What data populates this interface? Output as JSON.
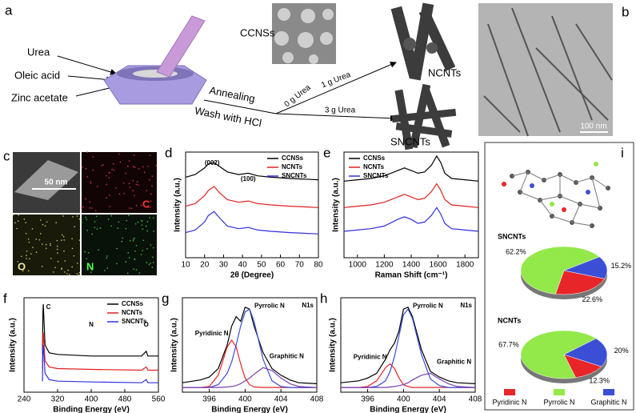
{
  "panel_a": {
    "label": "a",
    "inputs": [
      "Urea",
      "Oleic acid",
      "Zinc acetate"
    ],
    "process": [
      "Annealing",
      "Wash with HCl"
    ],
    "conditions": [
      "0 g Urea",
      "1 g Urea",
      "3 g Urea"
    ],
    "products": [
      "CCNSs",
      "NCNTs",
      "SNCNTs"
    ]
  },
  "panel_b": {
    "label": "b",
    "scale_bar": "100 nm"
  },
  "panel_c": {
    "label": "c",
    "scale_bar": "50 nm",
    "maps": [
      "C",
      "O",
      "N"
    ]
  },
  "chart_data": [
    {
      "type": "line",
      "panel_label": "d",
      "x_label": "2θ (Degree)",
      "y_label": "Intensity (a.u.)",
      "annotations": [
        "(002)",
        "(100)"
      ],
      "legend": "upper right",
      "x": [
        10,
        15,
        20,
        22,
        25,
        28,
        32,
        38,
        43,
        48,
        55,
        65,
        80
      ],
      "series": [
        {
          "name": "CCNSs",
          "color": "#000000",
          "values": [
            3.05,
            3.15,
            3.4,
            3.55,
            3.6,
            3.45,
            3.25,
            3.15,
            3.2,
            3.1,
            3.05,
            3.0,
            2.95
          ]
        },
        {
          "name": "NCNTs",
          "color": "#e02020",
          "values": [
            1.95,
            2.05,
            2.35,
            2.55,
            2.7,
            2.45,
            2.2,
            2.1,
            2.15,
            2.05,
            2.0,
            1.95,
            1.9
          ]
        },
        {
          "name": "SNCNTs",
          "color": "#3030e0",
          "values": [
            0.95,
            1.05,
            1.35,
            1.6,
            1.75,
            1.5,
            1.2,
            1.1,
            1.15,
            1.05,
            1.0,
            0.95,
            0.9
          ]
        }
      ],
      "xlim": [
        10,
        80
      ],
      "xticks": [
        10,
        20,
        30,
        40,
        50,
        60,
        70,
        80
      ],
      "ylim": [
        0,
        4
      ]
    },
    {
      "type": "line",
      "panel_label": "e",
      "x_label": "Raman Shift (cm⁻¹)",
      "y_label": "Intensity (a.u.)",
      "annotations": [],
      "legend": "upper left",
      "x": [
        900,
        1000,
        1100,
        1200,
        1300,
        1350,
        1400,
        1450,
        1500,
        1550,
        1590,
        1620,
        1650,
        1700,
        1800,
        1900
      ],
      "series": [
        {
          "name": "CCNSs",
          "color": "#000000",
          "values": [
            2.9,
            2.95,
            3.0,
            3.1,
            3.3,
            3.4,
            3.3,
            3.2,
            3.25,
            3.5,
            3.85,
            3.6,
            3.2,
            3.0,
            2.95,
            2.9
          ]
        },
        {
          "name": "NCNTs",
          "color": "#e02020",
          "values": [
            1.9,
            1.95,
            2.0,
            2.1,
            2.3,
            2.4,
            2.3,
            2.2,
            2.25,
            2.5,
            2.8,
            2.55,
            2.2,
            2.0,
            1.95,
            1.9
          ]
        },
        {
          "name": "SNCNTs",
          "color": "#3030e0",
          "values": [
            1.0,
            1.05,
            1.1,
            1.2,
            1.45,
            1.55,
            1.45,
            1.3,
            1.35,
            1.6,
            1.9,
            1.65,
            1.3,
            1.1,
            1.05,
            1.0
          ]
        }
      ],
      "xlim": [
        900,
        1900
      ],
      "xticks": [
        1000,
        1200,
        1400,
        1600,
        1800
      ],
      "ylim": [
        0,
        4
      ]
    },
    {
      "type": "line",
      "panel_label": "f",
      "x_label": "Binding Energy (eV)",
      "y_label": "Intensity (a.u.)",
      "annotations": [
        "C",
        "N",
        "O"
      ],
      "legend": "upper right",
      "x": [
        284,
        285,
        286,
        290,
        300,
        320,
        400,
        520,
        531,
        535,
        560
      ],
      "series": [
        {
          "name": "CCNSs",
          "color": "#000000",
          "values": [
            2.4,
            5.0,
            5.6,
            3.0,
            2.5,
            2.4,
            2.3,
            2.3,
            2.6,
            2.3,
            2.3
          ]
        },
        {
          "name": "NCNTs",
          "color": "#e02020",
          "values": [
            1.5,
            3.4,
            3.8,
            2.0,
            1.6,
            1.5,
            1.45,
            1.4,
            1.6,
            1.4,
            1.4
          ]
        },
        {
          "name": "SNCNTs",
          "color": "#3030e0",
          "values": [
            0.7,
            2.6,
            3.0,
            1.2,
            0.8,
            0.7,
            0.65,
            0.6,
            0.8,
            0.6,
            0.6
          ]
        }
      ],
      "xlim": [
        240,
        560
      ],
      "xticks": [
        240,
        320,
        400,
        480,
        560
      ],
      "ylim": [
        0,
        6
      ]
    },
    {
      "type": "line",
      "panel_label": "g",
      "x_label": "Binding Energy (eV)",
      "y_label": "Intensity (a.u.)",
      "annotations": [
        "N1s"
      ],
      "legend": "none",
      "x": [
        393,
        395,
        396,
        397,
        398,
        398.5,
        399,
        399.5,
        400,
        400.5,
        401,
        402,
        403,
        404,
        405,
        406,
        408
      ],
      "series": [
        {
          "color": "#000000",
          "values": [
            1,
            1.3,
            1.6,
            2.5,
            5,
            7,
            8,
            7.5,
            9,
            8.8,
            7,
            4.2,
            2.5,
            1.8,
            1.3,
            1.0,
            0.9
          ]
        },
        {
          "name": "Pyridinic N",
          "color": "#e8262a",
          "values": [
            0.5,
            0.5,
            0.6,
            1.8,
            4.8,
            5.5,
            4.8,
            3,
            1.5,
            0.8,
            0.55,
            0.5,
            0.5,
            0.5,
            0.5,
            0.5,
            0.5
          ]
        },
        {
          "name": "Pyrrolic N",
          "color": "#3b4fd6",
          "values": [
            0.5,
            0.5,
            0.5,
            0.8,
            2,
            3.2,
            5,
            7,
            8.5,
            8.8,
            7.5,
            3.5,
            1.2,
            0.6,
            0.5,
            0.5,
            0.5
          ]
        },
        {
          "name": "Graphitic N",
          "color": "#7a3fb0",
          "values": [
            0.5,
            0.5,
            0.5,
            0.5,
            0.55,
            0.6,
            0.7,
            0.9,
            1.2,
            1.5,
            1.9,
            2.6,
            2.3,
            1.5,
            0.9,
            0.6,
            0.5
          ]
        }
      ],
      "xlim": [
        393,
        408
      ],
      "xticks": [
        396,
        400,
        404,
        408
      ],
      "ylim": [
        0,
        10
      ]
    },
    {
      "type": "line",
      "panel_label": "h",
      "x_label": "Binding Energy (eV)",
      "y_label": "Intensity (a.u.)",
      "annotations": [
        "N1s"
      ],
      "legend": "none",
      "x": [
        393,
        395,
        396,
        397,
        398,
        398.5,
        399,
        399.5,
        400,
        400.5,
        401,
        402,
        403,
        404,
        405,
        406,
        408
      ],
      "series": [
        {
          "color": "#000000",
          "values": [
            1,
            1.2,
            1.5,
            2,
            3.5,
            4.5,
            5.2,
            6.5,
            8.8,
            9,
            8,
            4.5,
            2.2,
            1.6,
            1.2,
            1,
            0.9
          ]
        },
        {
          "name": "Pyridinic N",
          "color": "#e8262a",
          "values": [
            0.5,
            0.5,
            0.6,
            1.2,
            2.6,
            3.0,
            2.5,
            1.5,
            0.8,
            0.6,
            0.5,
            0.5,
            0.5,
            0.5,
            0.5,
            0.5,
            0.5
          ]
        },
        {
          "name": "Pyrrolic N",
          "color": "#3b4fd6",
          "values": [
            0.5,
            0.5,
            0.5,
            0.6,
            1.2,
            2.2,
            3.8,
            6,
            8.2,
            8.8,
            7.8,
            4,
            1.4,
            0.7,
            0.5,
            0.5,
            0.5
          ]
        },
        {
          "name": "Graphitic N",
          "color": "#7a3fb0",
          "values": [
            0.5,
            0.5,
            0.5,
            0.5,
            0.5,
            0.55,
            0.6,
            0.7,
            0.8,
            1,
            1.3,
            1.8,
            2.0,
            1.4,
            0.9,
            0.6,
            0.5
          ]
        }
      ],
      "xlim": [
        393,
        408
      ],
      "xticks": [
        396,
        400,
        404,
        408
      ],
      "ylim": [
        0,
        10
      ]
    },
    {
      "type": "pie",
      "panel_label": "i",
      "categories": [
        "Pyridinic N",
        "Pyrrolic N",
        "Graphitic N"
      ],
      "colors": [
        "#e8262a",
        "#93e84a",
        "#3b4fd6"
      ],
      "pies": [
        {
          "name": "SNCNTs",
          "values": [
            22.6,
            62.2,
            15.2
          ],
          "value_labels": [
            "22.6%",
            "62.2%",
            "15.2%"
          ]
        },
        {
          "name": "NCNTs",
          "values": [
            12.3,
            67.7,
            20
          ],
          "value_labels": [
            "12.3%",
            "67.7%",
            "20%"
          ]
        }
      ]
    }
  ]
}
